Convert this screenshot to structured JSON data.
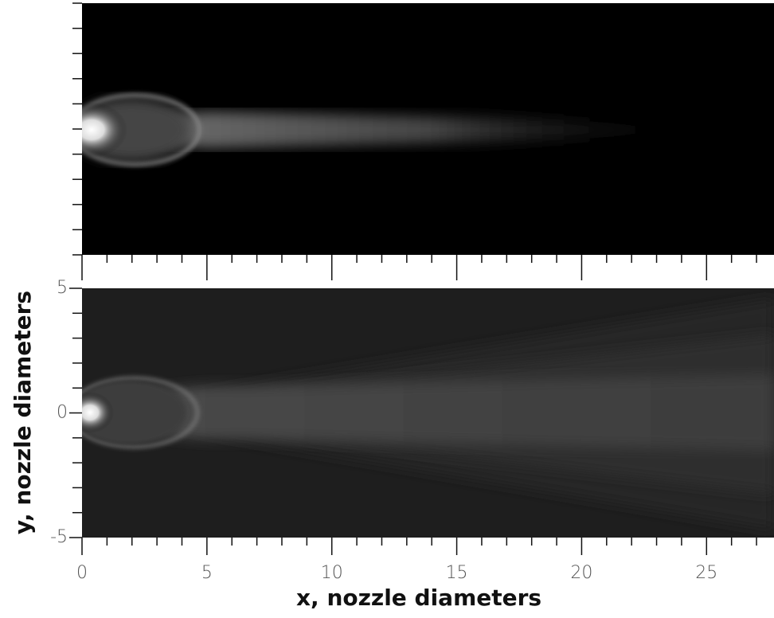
{
  "chart_data": [
    {
      "type": "image",
      "xlim": [
        0,
        27.7
      ],
      "ylim": [
        -5,
        5
      ],
      "xminorticks": [
        0,
        1,
        2,
        3,
        4,
        5,
        6,
        7,
        8,
        9,
        10,
        11,
        12,
        13,
        14,
        15,
        16,
        17,
        18,
        19,
        20,
        21,
        22,
        23,
        24,
        25,
        26,
        27
      ],
      "yminorticks": [
        -5,
        -4,
        -3,
        -2,
        -1,
        0,
        1,
        2,
        3,
        4,
        5
      ]
    },
    {
      "type": "image",
      "xlabel": "x, nozzle diameters",
      "ylabel": "y, nozzle diameters",
      "xlim": [
        0,
        27.7
      ],
      "ylim": [
        -5,
        5
      ],
      "xticks": [
        0,
        5,
        10,
        15,
        20,
        25
      ],
      "yticks": [
        -5,
        0,
        5
      ],
      "xminorticks": [
        0,
        1,
        2,
        3,
        4,
        5,
        6,
        7,
        8,
        9,
        10,
        11,
        12,
        13,
        14,
        15,
        16,
        17,
        18,
        19,
        20,
        21,
        22,
        23,
        24,
        25,
        26,
        27
      ],
      "yminorticks": [
        -5,
        -4,
        -3,
        -2,
        -1,
        0,
        1,
        2,
        3,
        4,
        5
      ]
    }
  ]
}
